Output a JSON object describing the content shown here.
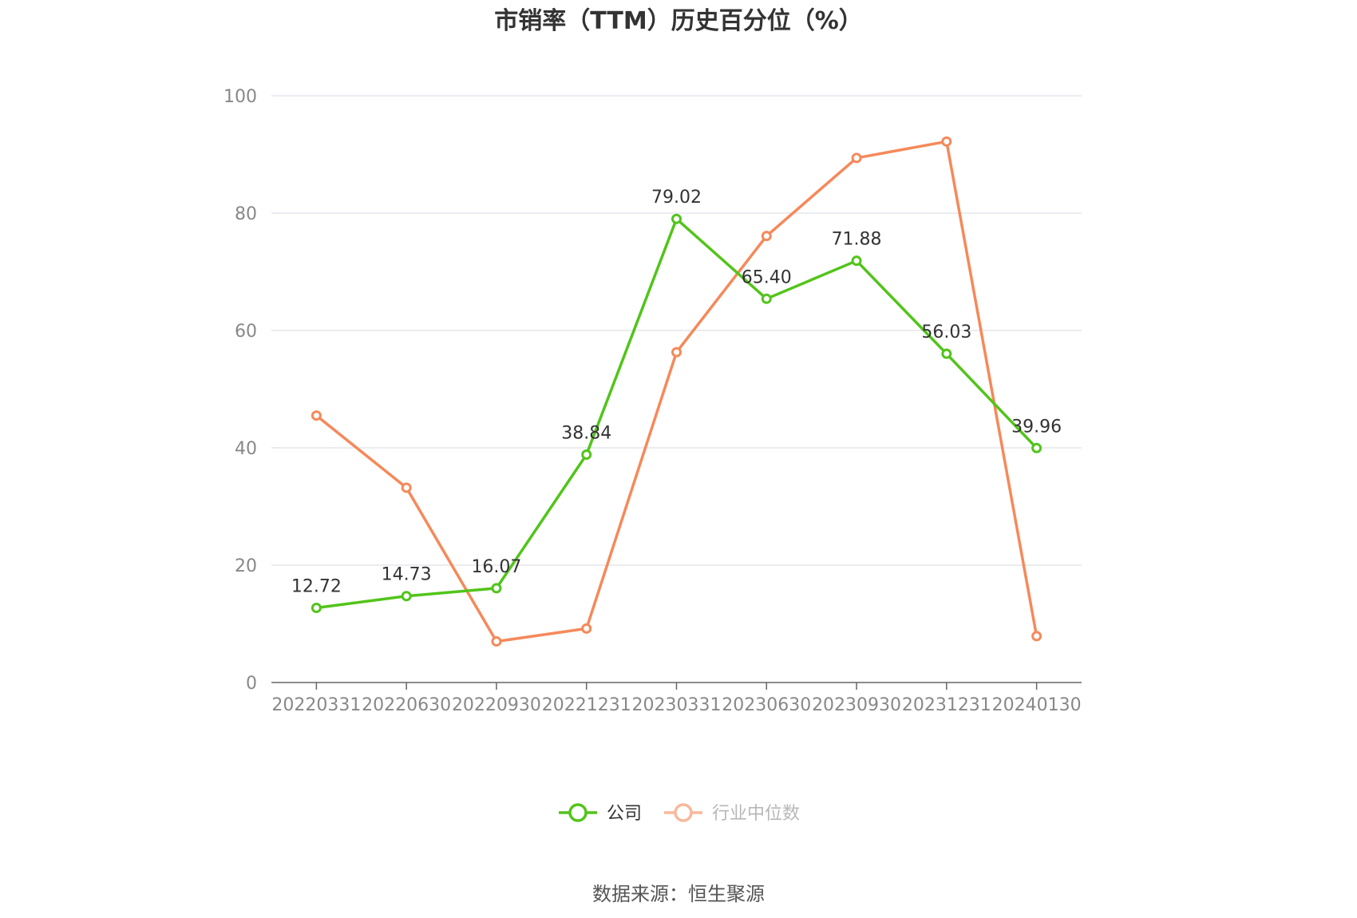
{
  "chart_data": {
    "type": "line",
    "title": "市销率（TTM）历史百分位（%）",
    "categories": [
      "20220331",
      "20220630",
      "20220930",
      "20221231",
      "20230331",
      "20230630",
      "20230930",
      "20231231",
      "20240130"
    ],
    "ylim": [
      0,
      100
    ],
    "yticks": [
      0,
      20,
      40,
      60,
      80,
      100
    ],
    "grid": true,
    "legend_position": "bottom",
    "series": [
      {
        "name": "公司",
        "color": "#52c41a",
        "values": [
          12.72,
          14.73,
          16.07,
          38.84,
          79.02,
          65.4,
          71.88,
          56.03,
          39.96
        ],
        "labels": [
          "12.72",
          "14.73",
          "16.07",
          "38.84",
          "79.02",
          "65.40",
          "71.88",
          "56.03",
          "39.96"
        ]
      },
      {
        "name": "行业中位数",
        "color": "#f5895a",
        "values": [
          45.5,
          33.2,
          7.0,
          9.2,
          56.3,
          76.1,
          89.4,
          92.2,
          7.9
        ]
      }
    ],
    "source": "数据来源：恒生聚源"
  }
}
